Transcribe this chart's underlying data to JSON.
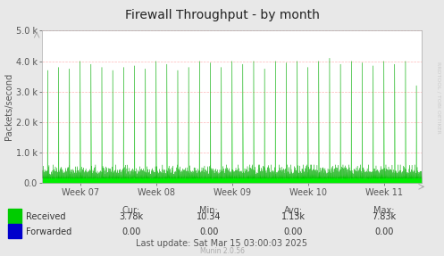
{
  "title": "Firewall Throughput - by month",
  "ylabel": "Packets/second",
  "background_color": "#e8e8e8",
  "plot_bg_color": "#ffffff",
  "grid_color": "#ff8888",
  "ylim": [
    0,
    5000
  ],
  "yticks": [
    0,
    1000,
    2000,
    3000,
    4000,
    5000
  ],
  "ytick_labels": [
    "0.0",
    "1.0 k",
    "2.0 k",
    "3.0 k",
    "4.0 k",
    "5.0 k"
  ],
  "xtick_labels": [
    "Week 07",
    "Week 08",
    "Week 09",
    "Week 10",
    "Week 11"
  ],
  "fill_color_received": "#00ee00",
  "line_color_received": "#00aa00",
  "legend_received": "Received",
  "legend_forwarded": "Forwarded",
  "legend_received_color": "#00cc00",
  "legend_forwarded_color": "#0000cc",
  "stats_cur": "3.78k",
  "stats_min": "10.34",
  "stats_avg": "1.13k",
  "stats_max": "7.83k",
  "stats_cur_fwd": "0.00",
  "stats_min_fwd": "0.00",
  "stats_avg_fwd": "0.00",
  "stats_max_fwd": "0.00",
  "last_update": "Last update: Sat Mar 15 03:00:03 2025",
  "munin_version": "Munin 2.0.56",
  "rrdtool_label": "RRDTOOL / TOBI OETIKER",
  "title_fontsize": 10,
  "axis_label_fontsize": 7,
  "tick_fontsize": 7,
  "stats_fontsize": 7,
  "spike_heights": [
    3700,
    3800,
    3750,
    4000,
    3900,
    3800,
    3700,
    3800,
    3850,
    3750,
    4000,
    3900,
    3700,
    3800,
    4000,
    3950,
    3800,
    4000,
    3900,
    4000,
    3750,
    4000,
    3950,
    4000,
    3800,
    4000,
    4100,
    3900,
    4000,
    3950,
    3850,
    4000,
    3900,
    4000,
    3200
  ]
}
